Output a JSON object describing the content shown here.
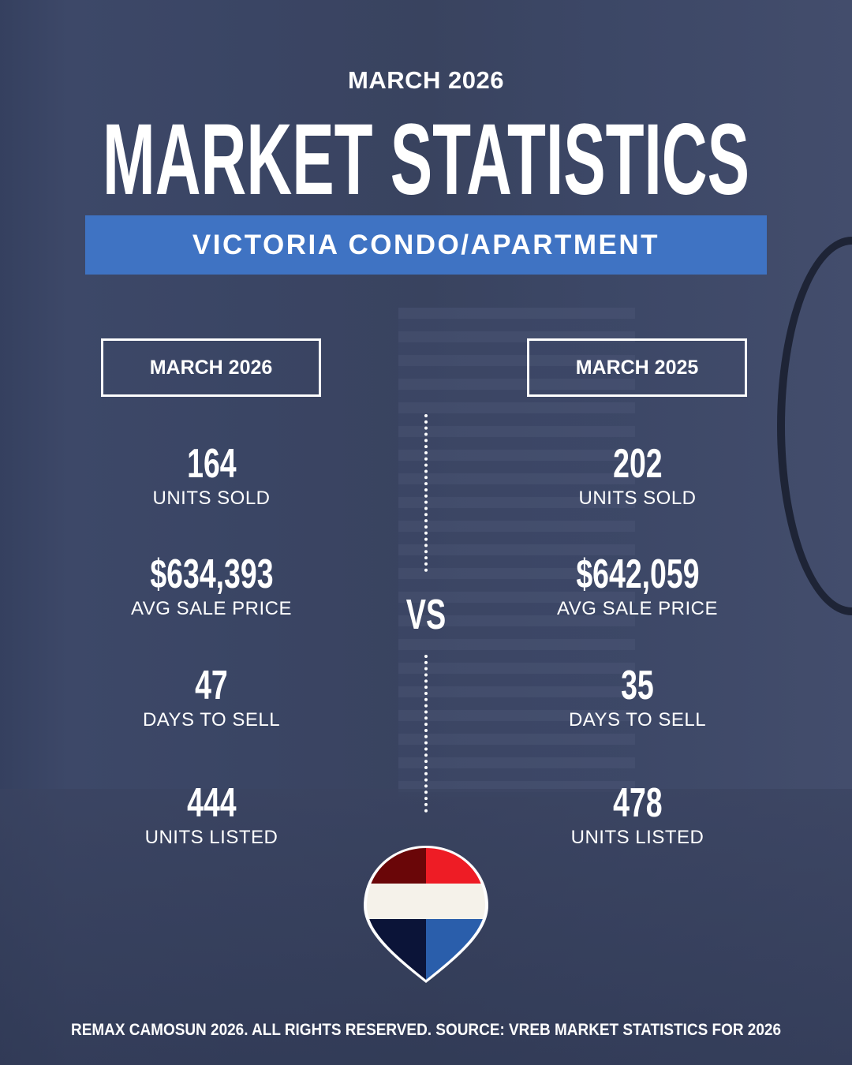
{
  "header": {
    "subtitle": "MARCH 2026",
    "title": "MARKET STATISTICS",
    "banner": "VICTORIA CONDO/APARTMENT"
  },
  "colors": {
    "banner": "#3f73c3",
    "background": "#3a4564",
    "logo_red_dark": "#6a0608",
    "logo_red": "#ee1c25",
    "logo_white": "#f5f2ea",
    "logo_navy": "#0b1438",
    "logo_blue": "#2a5eab"
  },
  "left": {
    "period": "MARCH 2026",
    "stats": [
      {
        "value": "164",
        "label": "UNITS SOLD"
      },
      {
        "value": "$634,393",
        "label": "AVG SALE PRICE"
      },
      {
        "value": "47",
        "label": "DAYS TO SELL"
      },
      {
        "value": "444",
        "label": "UNITS LISTED"
      }
    ]
  },
  "right": {
    "period": "MARCH 2025",
    "stats": [
      {
        "value": "202",
        "label": "UNITS SOLD"
      },
      {
        "value": "$642,059",
        "label": "AVG SALE PRICE"
      },
      {
        "value": "35",
        "label": "DAYS TO SELL"
      },
      {
        "value": "478",
        "label": "UNITS LISTED"
      }
    ]
  },
  "vs": "VS",
  "footer": "REMAX CAMOSUN 2026. ALL RIGHTS RESERVED. SOURCE: VREB MARKET STATISTICS FOR 2026",
  "logo": {
    "icon": "remax-balloon-pin-icon"
  }
}
